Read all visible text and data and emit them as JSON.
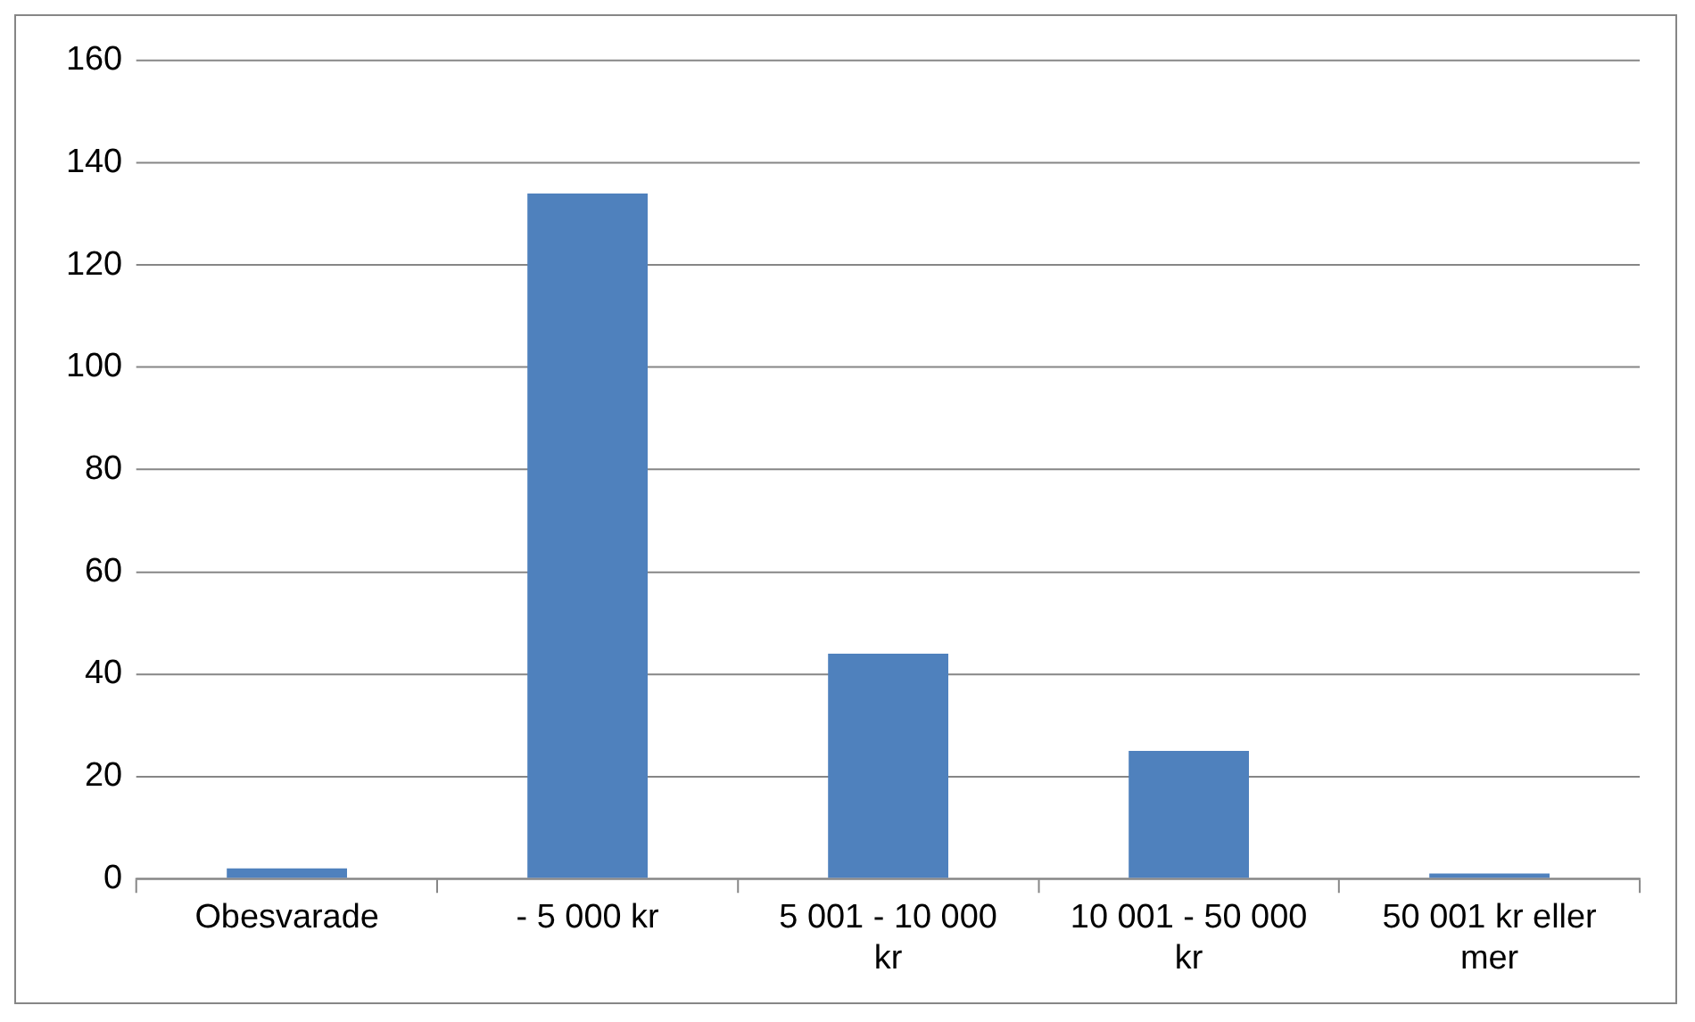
{
  "chart_data": {
    "type": "bar",
    "categories": [
      "Obesvarade",
      "- 5 000 kr",
      "5 001 - 10 000 kr",
      "10 001 - 50 000 kr",
      "50 001 kr eller mer"
    ],
    "values": [
      2,
      134,
      44,
      25,
      1
    ],
    "color": "#4f81bd",
    "ylim": [
      0,
      160
    ],
    "yticks": [
      0,
      20,
      40,
      60,
      80,
      100,
      120,
      140,
      160
    ],
    "grid": "y"
  }
}
